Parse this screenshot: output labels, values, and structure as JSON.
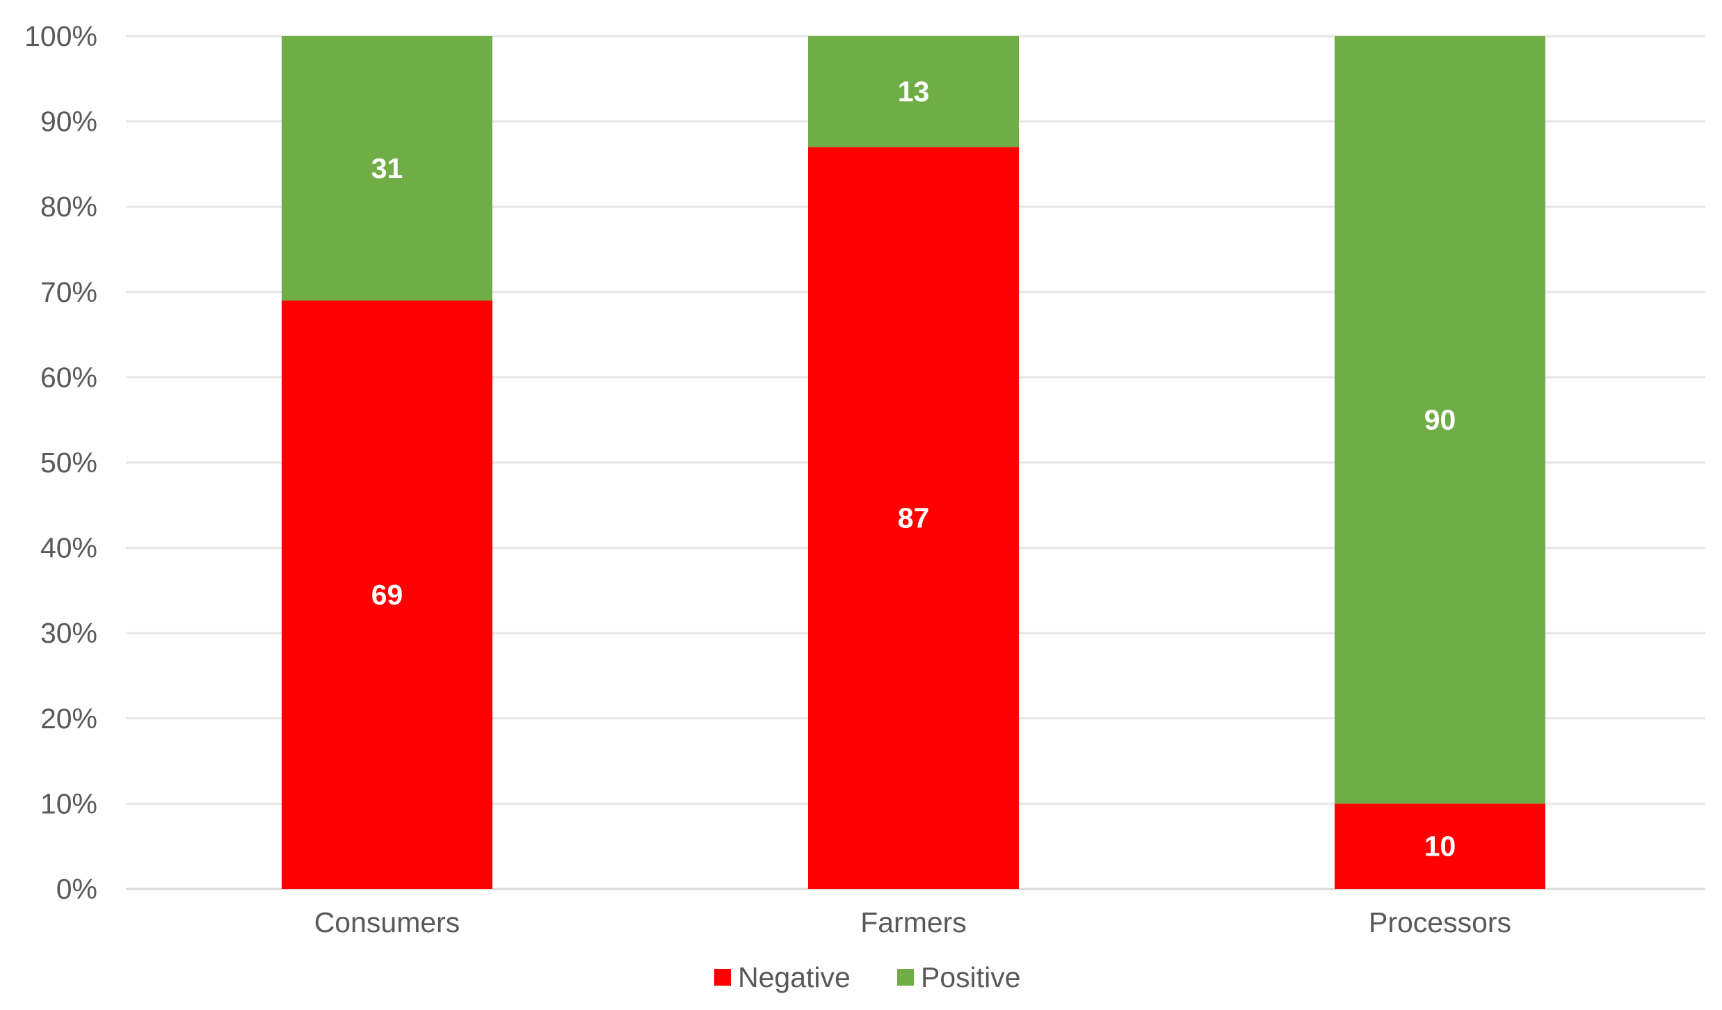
{
  "chart_data": {
    "type": "bar",
    "stacked": true,
    "categories": [
      "Consumers",
      "Farmers",
      "Processors"
    ],
    "series": [
      {
        "name": "Negative",
        "color": "#ff0000",
        "values": [
          69,
          87,
          10
        ]
      },
      {
        "name": "Positive",
        "color": "#70ad47",
        "values": [
          31,
          13,
          90
        ]
      }
    ],
    "ylim": [
      0,
      100
    ],
    "y_ticks": [
      "0%",
      "10%",
      "20%",
      "30%",
      "40%",
      "50%",
      "60%",
      "70%",
      "80%",
      "90%",
      "100%"
    ],
    "grid": true,
    "legend_position": "bottom"
  }
}
